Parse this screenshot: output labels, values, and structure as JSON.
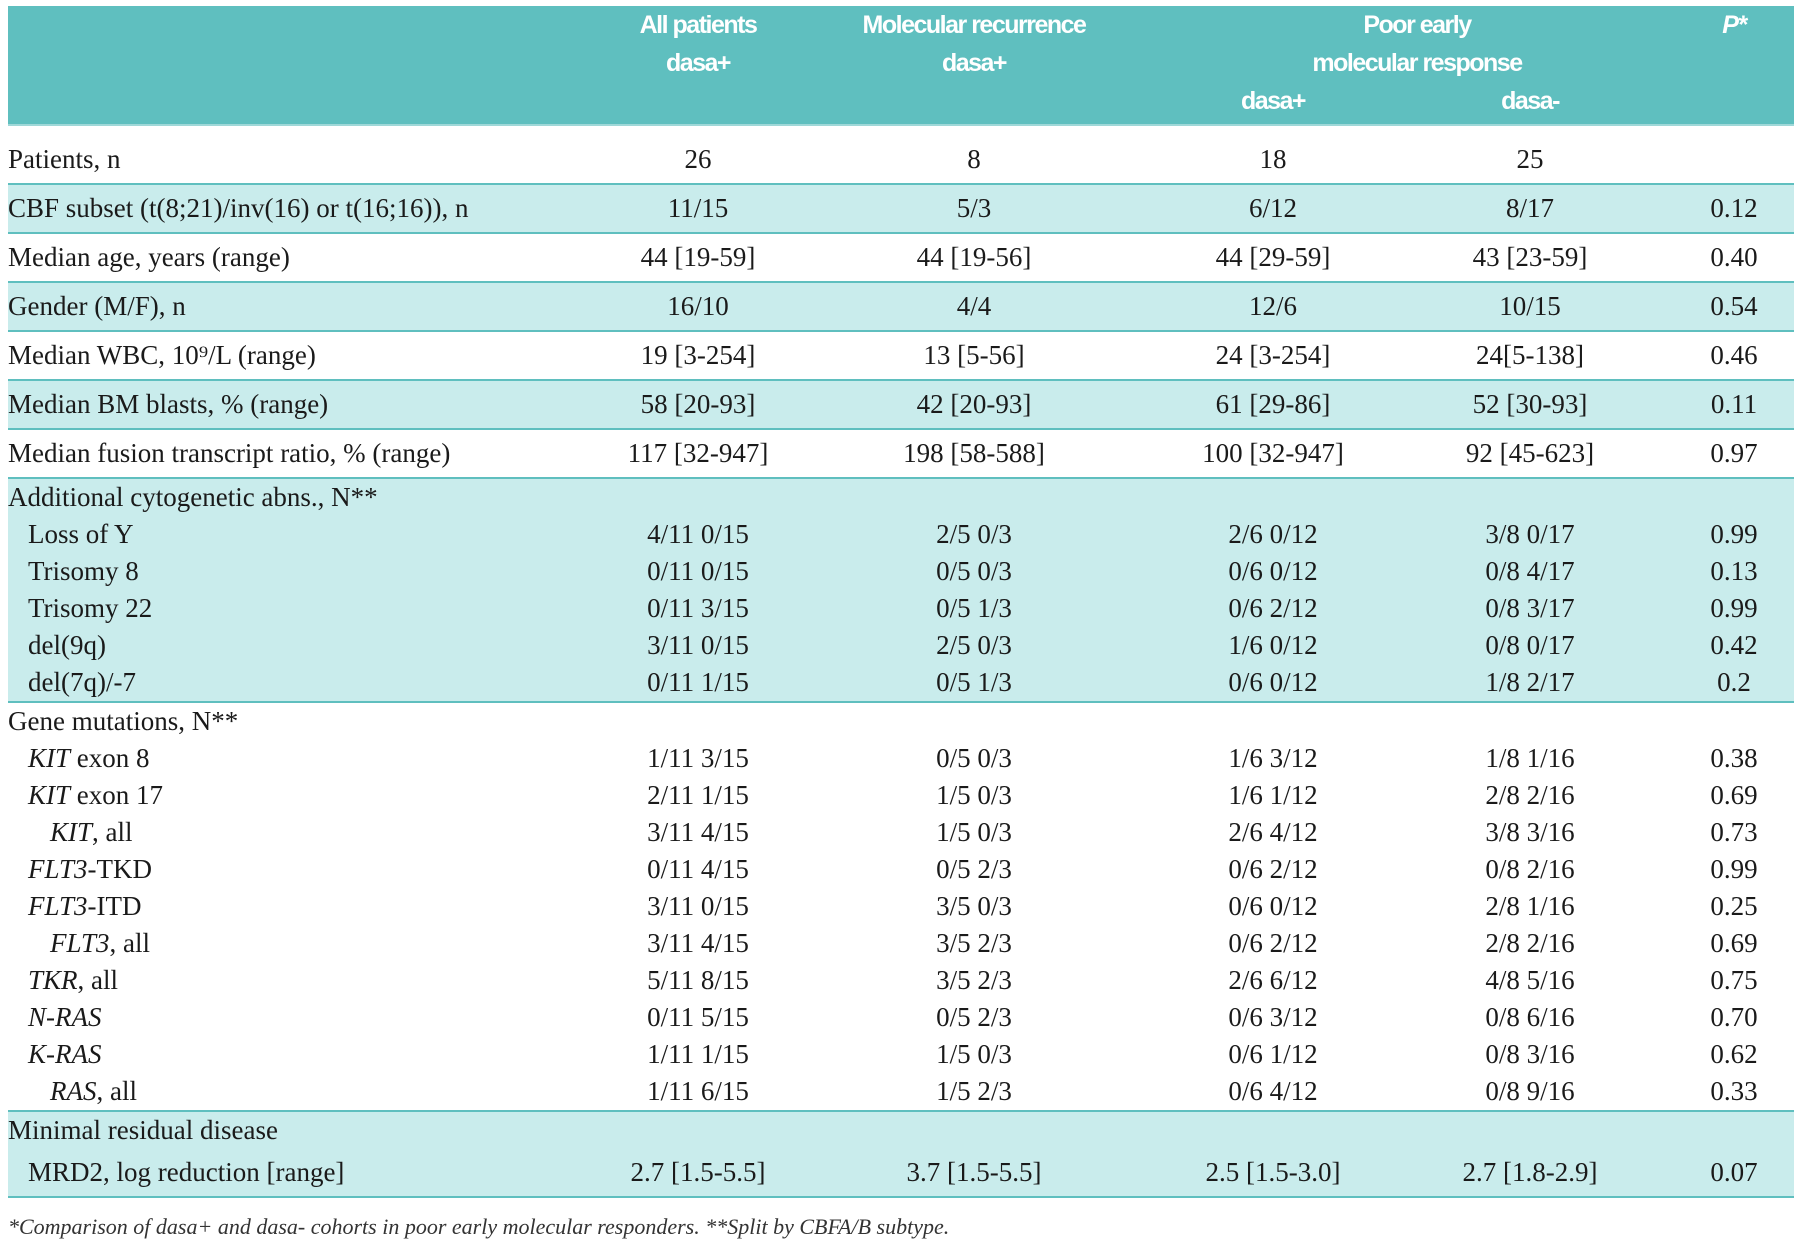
{
  "header": {
    "col1": [
      "All patients",
      "dasa+"
    ],
    "col2": [
      "Molecular recurrence",
      "dasa+"
    ],
    "group": [
      "Poor early",
      "molecular response"
    ],
    "col3": "dasa+",
    "col4": "dasa-",
    "col5": "P*"
  },
  "rows": [
    {
      "label": "Patients, n",
      "values": [
        "26",
        "8",
        "18",
        "25",
        ""
      ],
      "shade": false,
      "type": "row"
    },
    {
      "label": "CBF subset (t(8;21)/inv(16) or t(16;16)), n",
      "values": [
        "11/15",
        "5/3",
        "6/12",
        "8/17",
        "0.12"
      ],
      "shade": true,
      "type": "row"
    },
    {
      "label": "Median age, years (range)",
      "values": [
        "44 [19-59]",
        "44 [19-56]",
        "44 [29-59]",
        "43 [23-59]",
        "0.40"
      ],
      "shade": false,
      "type": "row"
    },
    {
      "label": "Gender (M/F), n",
      "values": [
        "16/10",
        "4/4",
        "12/6",
        "10/15",
        "0.54"
      ],
      "shade": true,
      "type": "row"
    },
    {
      "label": "Median WBC, 10⁹/L (range)",
      "values": [
        "19 [3-254]",
        "13 [5-56]",
        "24 [3-254]",
        "24[5-138]",
        "0.46"
      ],
      "shade": false,
      "type": "row"
    },
    {
      "label": "Median BM blasts, % (range)",
      "values": [
        "58 [20-93]",
        "42 [20-93]",
        "61 [29-86]",
        "52 [30-93]",
        "0.11"
      ],
      "shade": true,
      "type": "row"
    },
    {
      "label": "Median fusion transcript ratio, % (range)",
      "values": [
        "117 [32-947]",
        "198 [58-588]",
        "100 [32-947]",
        "92 [45-623]",
        "0.97"
      ],
      "shade": false,
      "type": "row"
    },
    {
      "label": "Additional cytogenetic abns., N**",
      "values": [
        "",
        "",
        "",
        "",
        ""
      ],
      "shade": true,
      "type": "sub"
    },
    {
      "label": "Loss of Y",
      "indent": 1,
      "values": [
        "4/11 0/15",
        "2/5 0/3",
        "2/6 0/12",
        "3/8 0/17",
        "0.99"
      ],
      "shade": true,
      "type": "sub"
    },
    {
      "label": "Trisomy 8",
      "indent": 1,
      "values": [
        "0/11 0/15",
        "0/5 0/3",
        "0/6 0/12",
        "0/8 4/17",
        "0.13"
      ],
      "shade": true,
      "type": "sub"
    },
    {
      "label": "Trisomy 22",
      "indent": 1,
      "values": [
        "0/11 3/15",
        "0/5 1/3",
        "0/6 2/12",
        "0/8 3/17",
        "0.99"
      ],
      "shade": true,
      "type": "sub"
    },
    {
      "label": "del(9q)",
      "indent": 1,
      "values": [
        "3/11 0/15",
        "2/5 0/3",
        "1/6 0/12",
        "0/8 0/17",
        "0.42"
      ],
      "shade": true,
      "type": "sub"
    },
    {
      "label": "del(7q)/-7",
      "indent": 1,
      "values": [
        "0/11 1/15",
        "0/5 1/3",
        "0/6 0/12",
        "1/8 2/17",
        "0.2"
      ],
      "shade": true,
      "type": "sub"
    },
    {
      "label": "Gene mutations, N**",
      "values": [
        "",
        "",
        "",
        "",
        ""
      ],
      "shade": false,
      "type": "sub"
    },
    {
      "italic": "KIT",
      "label": " exon 8",
      "indent": 1,
      "values": [
        "1/11 3/15",
        "0/5 0/3",
        "1/6 3/12",
        "1/8 1/16",
        "0.38"
      ],
      "shade": false,
      "type": "sub"
    },
    {
      "italic": "KIT",
      "label": " exon 17",
      "indent": 1,
      "values": [
        "2/11 1/15",
        "1/5 0/3",
        "1/6 1/12",
        "2/8 2/16",
        "0.69"
      ],
      "shade": false,
      "type": "sub"
    },
    {
      "italic": "KIT",
      "label": ", all",
      "indent": 2,
      "values": [
        "3/11 4/15",
        "1/5 0/3",
        "2/6 4/12",
        "3/8 3/16",
        "0.73"
      ],
      "shade": false,
      "type": "sub"
    },
    {
      "italic": "FLT3",
      "label": "-TKD",
      "indent": 1,
      "values": [
        "0/11 4/15",
        "0/5 2/3",
        "0/6 2/12",
        "0/8 2/16",
        "0.99"
      ],
      "shade": false,
      "type": "sub"
    },
    {
      "italic": "FLT3",
      "label": "-ITD",
      "indent": 1,
      "values": [
        "3/11 0/15",
        "3/5 0/3",
        "0/6 0/12",
        "2/8 1/16",
        "0.25"
      ],
      "shade": false,
      "type": "sub"
    },
    {
      "italic": "FLT3",
      "label": ", all",
      "indent": 2,
      "values": [
        "3/11 4/15",
        "3/5 2/3",
        "0/6 2/12",
        "2/8 2/16",
        "0.69"
      ],
      "shade": false,
      "type": "sub"
    },
    {
      "italic": "TKR",
      "label": ", all",
      "indent": 1,
      "values": [
        "5/11 8/15",
        "3/5 2/3",
        "2/6 6/12",
        "4/8 5/16",
        "0.75"
      ],
      "shade": false,
      "type": "sub"
    },
    {
      "italic": "N-RAS",
      "label": "",
      "indent": 1,
      "values": [
        "0/11 5/15",
        "0/5 2/3",
        "0/6 3/12",
        "0/8 6/16",
        "0.70"
      ],
      "shade": false,
      "type": "sub"
    },
    {
      "italic": "K-RAS",
      "label": "",
      "indent": 1,
      "values": [
        "1/11 1/15",
        "1/5 0/3",
        "0/6 1/12",
        "0/8 3/16",
        "0.62"
      ],
      "shade": false,
      "type": "sub"
    },
    {
      "italic": "RAS",
      "label": ", all",
      "indent": 2,
      "values": [
        "1/11 6/15",
        "1/5 2/3",
        "0/6 4/12",
        "0/8 9/16",
        "0.33"
      ],
      "shade": false,
      "type": "sub"
    },
    {
      "label": "Minimal residual disease",
      "values": [
        "",
        "",
        "",
        "",
        ""
      ],
      "shade": true,
      "type": "sub"
    },
    {
      "label": "MRD2, log reduction [range]",
      "indent": 1,
      "values": [
        "2.7 [1.5-5.5]",
        "3.7 [1.5-5.5]",
        "2.5 [1.5-3.0]",
        "2.7 [1.8-2.9]",
        "0.07"
      ],
      "shade": true,
      "type": "row"
    }
  ],
  "footnote": "*Comparison of dasa+ and dasa- cohorts in poor early molecular responders. **Split by CBFA/B subtype."
}
